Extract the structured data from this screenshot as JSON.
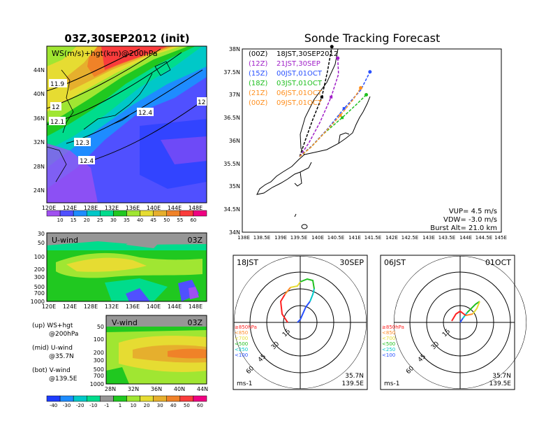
{
  "colors": {
    "cb1": [
      "#a050f0",
      "#5050ff",
      "#1e8cff",
      "#00c8c8",
      "#00dc8c",
      "#20c820",
      "#a0e632",
      "#e6dc32",
      "#e6af2d",
      "#f08228",
      "#fa3c3c",
      "#f00082"
    ],
    "cb2": [
      "#1e3cff",
      "#1e8cff",
      "#00c8c8",
      "#00dc8c",
      "#969696",
      "#20c820",
      "#a0e632",
      "#e6dc32",
      "#e6af2d",
      "#f08228",
      "#fa3c3c",
      "#f00082"
    ],
    "run": {
      "00Z": "#000000",
      "12Z": "#a020c8",
      "15Z": "#2850ff",
      "18Z": "#20c020",
      "21Z": "#ff9020",
      "00Z2": "#ff9020"
    }
  },
  "map_panel": {
    "title": "03Z,30SEP2012 (init)",
    "label": "WS(m/s)+hgt(km)@200hPa",
    "contour_labels": [
      "11.9",
      "12",
      "12.1",
      "12.3",
      "12.4",
      "12.4",
      "12"
    ],
    "lat_ticks": [
      "44N",
      "40N",
      "36N",
      "32N",
      "28N",
      "24N"
    ],
    "lon_ticks": [
      "120E",
      "124E",
      "128E",
      "132E",
      "136E",
      "140E",
      "144E",
      "148E"
    ],
    "colorbar_ticks": [
      "10",
      "15",
      "20",
      "25",
      "30",
      "35",
      "40",
      "45",
      "50",
      "55",
      "60"
    ]
  },
  "u_panel": {
    "title": "U-wind",
    "time": "03Z",
    "p_ticks": [
      "30",
      "50",
      "100",
      "200",
      "300",
      "500",
      "700",
      "1000"
    ],
    "lon_ticks": [
      "120E",
      "124E",
      "128E",
      "132E",
      "136E",
      "140E",
      "144E",
      "148E"
    ]
  },
  "v_panel": {
    "title": "V-wind",
    "time": "03Z",
    "p_ticks": [
      "50",
      "100",
      "200",
      "300",
      "500",
      "700",
      "1000"
    ],
    "lat_ticks": [
      "28N",
      "32N",
      "36N",
      "40N",
      "44N"
    ]
  },
  "legend_text": {
    "up": "(up) WS+hgt",
    "up2": "@200hPa",
    "mid": "(mid) U-wind",
    "mid2": "@35.7N",
    "bot": "(bot) V-wind",
    "bot2": "@139.5E"
  },
  "bottom_colorbar_ticks": [
    "-40",
    "-30",
    "-20",
    "-10",
    "-1",
    "1",
    "10",
    "20",
    "30",
    "40",
    "50",
    "60"
  ],
  "track_panel": {
    "title": "Sonde Tracking Forecast",
    "runs": [
      {
        "tag": "(00Z)",
        "time": "18JST,30SEP2012",
        "color": "#000000"
      },
      {
        "tag": "(12Z)",
        "time": "21JST,30SEP",
        "color": "#a020c8"
      },
      {
        "tag": "(15Z)",
        "time": "00JST,01OCT",
        "color": "#2850ff"
      },
      {
        "tag": "(18Z)",
        "time": "03JST,01OCT",
        "color": "#20c020"
      },
      {
        "tag": "(21Z)",
        "time": "06JST,01OCT",
        "color": "#ff9020"
      },
      {
        "tag": "(00Z)",
        "time": "09JST,01OCT",
        "color": "#ff9020"
      }
    ],
    "lat_ticks": [
      "38N",
      "37.5N",
      "37N",
      "36.5N",
      "36N",
      "35.5N",
      "35N",
      "34.5N",
      "34N"
    ],
    "lon_ticks": [
      "138E",
      "138.5E",
      "139E",
      "139.5E",
      "140E",
      "140.5E",
      "141E",
      "141.5E",
      "142E",
      "142.5E",
      "143E",
      "143.5E",
      "144E",
      "144.5E",
      "145E"
    ],
    "vup": "VUP= 4.5 m/s",
    "vdw": "VDW= -3.0 m/s",
    "burst": "Burst Alt= 21.0 km"
  },
  "hodo1": {
    "time": "18JST",
    "date": "30SEP",
    "lat": "35.7N",
    "lon": "139.5E",
    "unit": "ms-1"
  },
  "hodo2": {
    "time": "06JST",
    "date": "01OCT",
    "lat": "35.7N",
    "lon": "139.5E",
    "unit": "ms-1"
  },
  "hodo_legend": [
    "≥850hPa",
    "<850",
    "<700",
    "<500",
    "<250",
    "<100"
  ],
  "hodo_legend_colors": [
    "#ff2020",
    "#ff8c28",
    "#e6dc32",
    "#20c020",
    "#00c8c8",
    "#2850ff"
  ],
  "hodo_ring_labels": [
    "15",
    "30",
    "45",
    "60"
  ],
  "chart_data": [
    {
      "type": "heatmap",
      "title": "03Z,30SEP2012 (init)",
      "label": "WS(m/s)+hgt(km)@200hPa",
      "xlim": [
        "120E",
        "150E"
      ],
      "ylim": [
        "22N",
        "48N"
      ],
      "contour_values_km": [
        11.9,
        12,
        12.1,
        12.3,
        12.4,
        12.4,
        12
      ],
      "colorbar": [
        10,
        15,
        20,
        25,
        30,
        35,
        40,
        45,
        50,
        55,
        60
      ]
    },
    {
      "type": "line",
      "title": "Sonde Tracking Forecast",
      "series": [
        {
          "name": "(00Z) 18JST,30SEP2012",
          "x": [
            139.55,
            139.7,
            139.9,
            140.15,
            140.3,
            140.42
          ],
          "y": [
            35.65,
            36.0,
            36.45,
            36.95,
            37.5,
            38.05
          ]
        },
        {
          "name": "(12Z) 21JST,30SEP",
          "x": [
            139.55,
            139.8,
            140.1,
            140.4,
            140.6,
            140.58
          ],
          "y": [
            35.65,
            35.95,
            36.4,
            36.95,
            37.45,
            37.8
          ]
        },
        {
          "name": "(15Z) 00JST,01OCT",
          "x": [
            139.55,
            139.9,
            140.3,
            140.75,
            141.2,
            141.45
          ],
          "y": [
            35.65,
            35.9,
            36.25,
            36.7,
            37.1,
            37.5
          ]
        },
        {
          "name": "(18Z) 03JST,01OCT",
          "x": [
            139.55,
            139.85,
            140.2,
            140.7,
            141.1,
            141.35
          ],
          "y": [
            35.65,
            35.85,
            36.15,
            36.5,
            36.8,
            37.0
          ]
        },
        {
          "name": "(21Z) 06JST,01OCT",
          "x": [
            139.55,
            139.85,
            140.2,
            140.65,
            141.0,
            141.2
          ],
          "y": [
            35.65,
            35.85,
            36.15,
            36.55,
            36.9,
            37.15
          ]
        }
      ],
      "xlim": [
        138,
        145
      ],
      "ylim": [
        34,
        38
      ],
      "annotations": [
        "VUP= 4.5 m/s",
        "VDW= -3.0 m/s",
        "Burst Alt= 21.0 km"
      ]
    }
  ]
}
